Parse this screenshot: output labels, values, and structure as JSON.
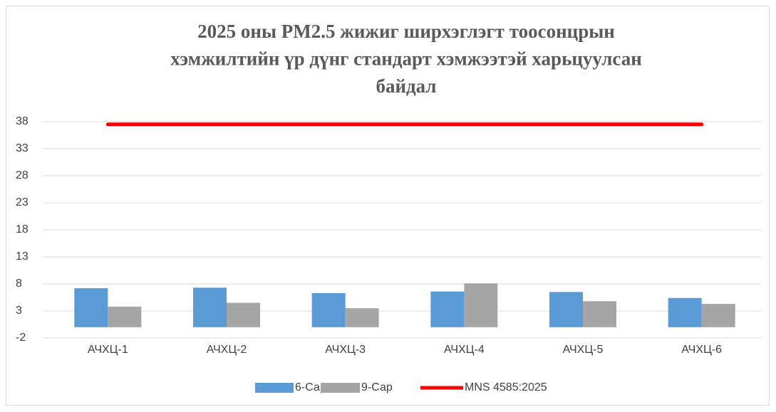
{
  "chart_data": {
    "type": "bar",
    "title": [
      "2025 оны PM2.5 жижиг ширхэглэгт тоосонцрын",
      "хэмжилтийн үр дүнг стандарт хэмжээтэй харьцуулсан",
      "байдал"
    ],
    "categories": [
      "АЧХЦ-1",
      "АЧХЦ-2",
      "АЧХЦ-3",
      "АЧХЦ-4",
      "АЧХЦ-5",
      "АЧХЦ-6"
    ],
    "series": [
      {
        "name": "6-Сар",
        "color": "#5b9bd5",
        "values": [
          7.2,
          7.3,
          6.3,
          6.6,
          6.5,
          5.4
        ]
      },
      {
        "name": "9-Сар",
        "color": "#a5a5a5",
        "values": [
          3.8,
          4.5,
          3.5,
          8.1,
          4.8,
          4.3
        ]
      },
      {
        "name": "MNS 4585:2025",
        "color": "#ff0000",
        "type": "line",
        "values": [
          37.5,
          37.5,
          37.5,
          37.5,
          37.5,
          37.5
        ]
      }
    ],
    "ylim": [
      -2,
      38
    ],
    "yticks": [
      -2,
      3,
      8,
      13,
      18,
      23,
      28,
      33,
      38
    ],
    "grid": true,
    "legend": "bottom"
  }
}
